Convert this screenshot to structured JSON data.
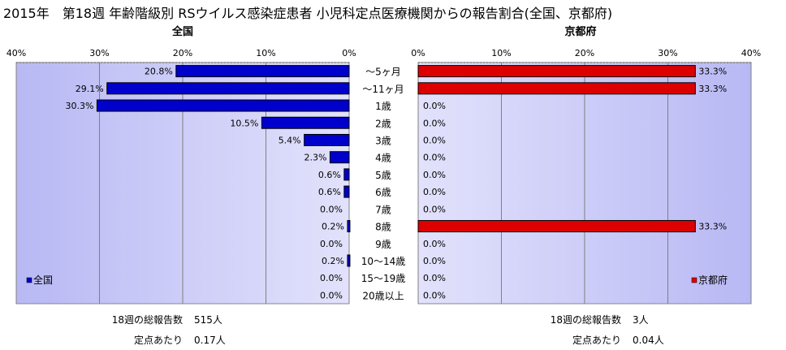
{
  "title": "2015年　第18週 年齢階級別 RSウイルス感染症患者 小児科定点医療機関からの報告割合(全国、京都府)",
  "chart_data": {
    "type": "bar",
    "orientation": "horizontal",
    "categories": [
      "～5ヶ月",
      "～11ヶ月",
      "1歳",
      "2歳",
      "3歳",
      "4歳",
      "5歳",
      "6歳",
      "7歳",
      "8歳",
      "9歳",
      "10～14歳",
      "15～19歳",
      "20歳以上"
    ],
    "series": [
      {
        "name": "全国",
        "panel_title": "全国",
        "direction": "reversed",
        "color": "#0000CC",
        "xlim": [
          0,
          40
        ],
        "ticks": [
          "40%",
          "30%",
          "20%",
          "10%",
          "0%"
        ],
        "tick_values": [
          40,
          30,
          20,
          10,
          0
        ],
        "values": [
          20.8,
          29.1,
          30.3,
          10.5,
          5.4,
          2.3,
          0.6,
          0.6,
          0.0,
          0.2,
          0.0,
          0.2,
          0.0,
          0.0
        ],
        "labels": [
          "20.8%",
          "29.1%",
          "30.3%",
          "10.5%",
          "5.4%",
          "2.3%",
          "0.6%",
          "0.6%",
          "0.0%",
          "0.2%",
          "0.0%",
          "0.2%",
          "0.0%",
          "0.0%"
        ],
        "legend": "全国",
        "legend_position": "bottom-left"
      },
      {
        "name": "京都府",
        "panel_title": "京都府",
        "direction": "normal",
        "color": "#DD0000",
        "xlim": [
          0,
          40
        ],
        "ticks": [
          "0%",
          "10%",
          "20%",
          "30%",
          "40%"
        ],
        "tick_values": [
          0,
          10,
          20,
          30,
          40
        ],
        "values": [
          33.3,
          33.3,
          0.0,
          0.0,
          0.0,
          0.0,
          0.0,
          0.0,
          0.0,
          33.3,
          0.0,
          0.0,
          0.0,
          0.0
        ],
        "labels": [
          "33.3%",
          "33.3%",
          "0.0%",
          "0.0%",
          "0.0%",
          "0.0%",
          "0.0%",
          "0.0%",
          "0.0%",
          "33.3%",
          "0.0%",
          "0.0%",
          "0.0%",
          "0.0%"
        ],
        "legend": "京都府",
        "legend_position": "bottom-right"
      }
    ],
    "grid": true,
    "plot_background": "#CCCCFF"
  },
  "footer": {
    "national": {
      "total_label": "18週の総報告数",
      "total_value": "515人",
      "per_label": "定点あたり",
      "per_value": "0.17人"
    },
    "kyoto": {
      "total_label": "18週の総報告数",
      "total_value": "3人",
      "per_label": "定点あたり",
      "per_value": "0.04人"
    }
  }
}
